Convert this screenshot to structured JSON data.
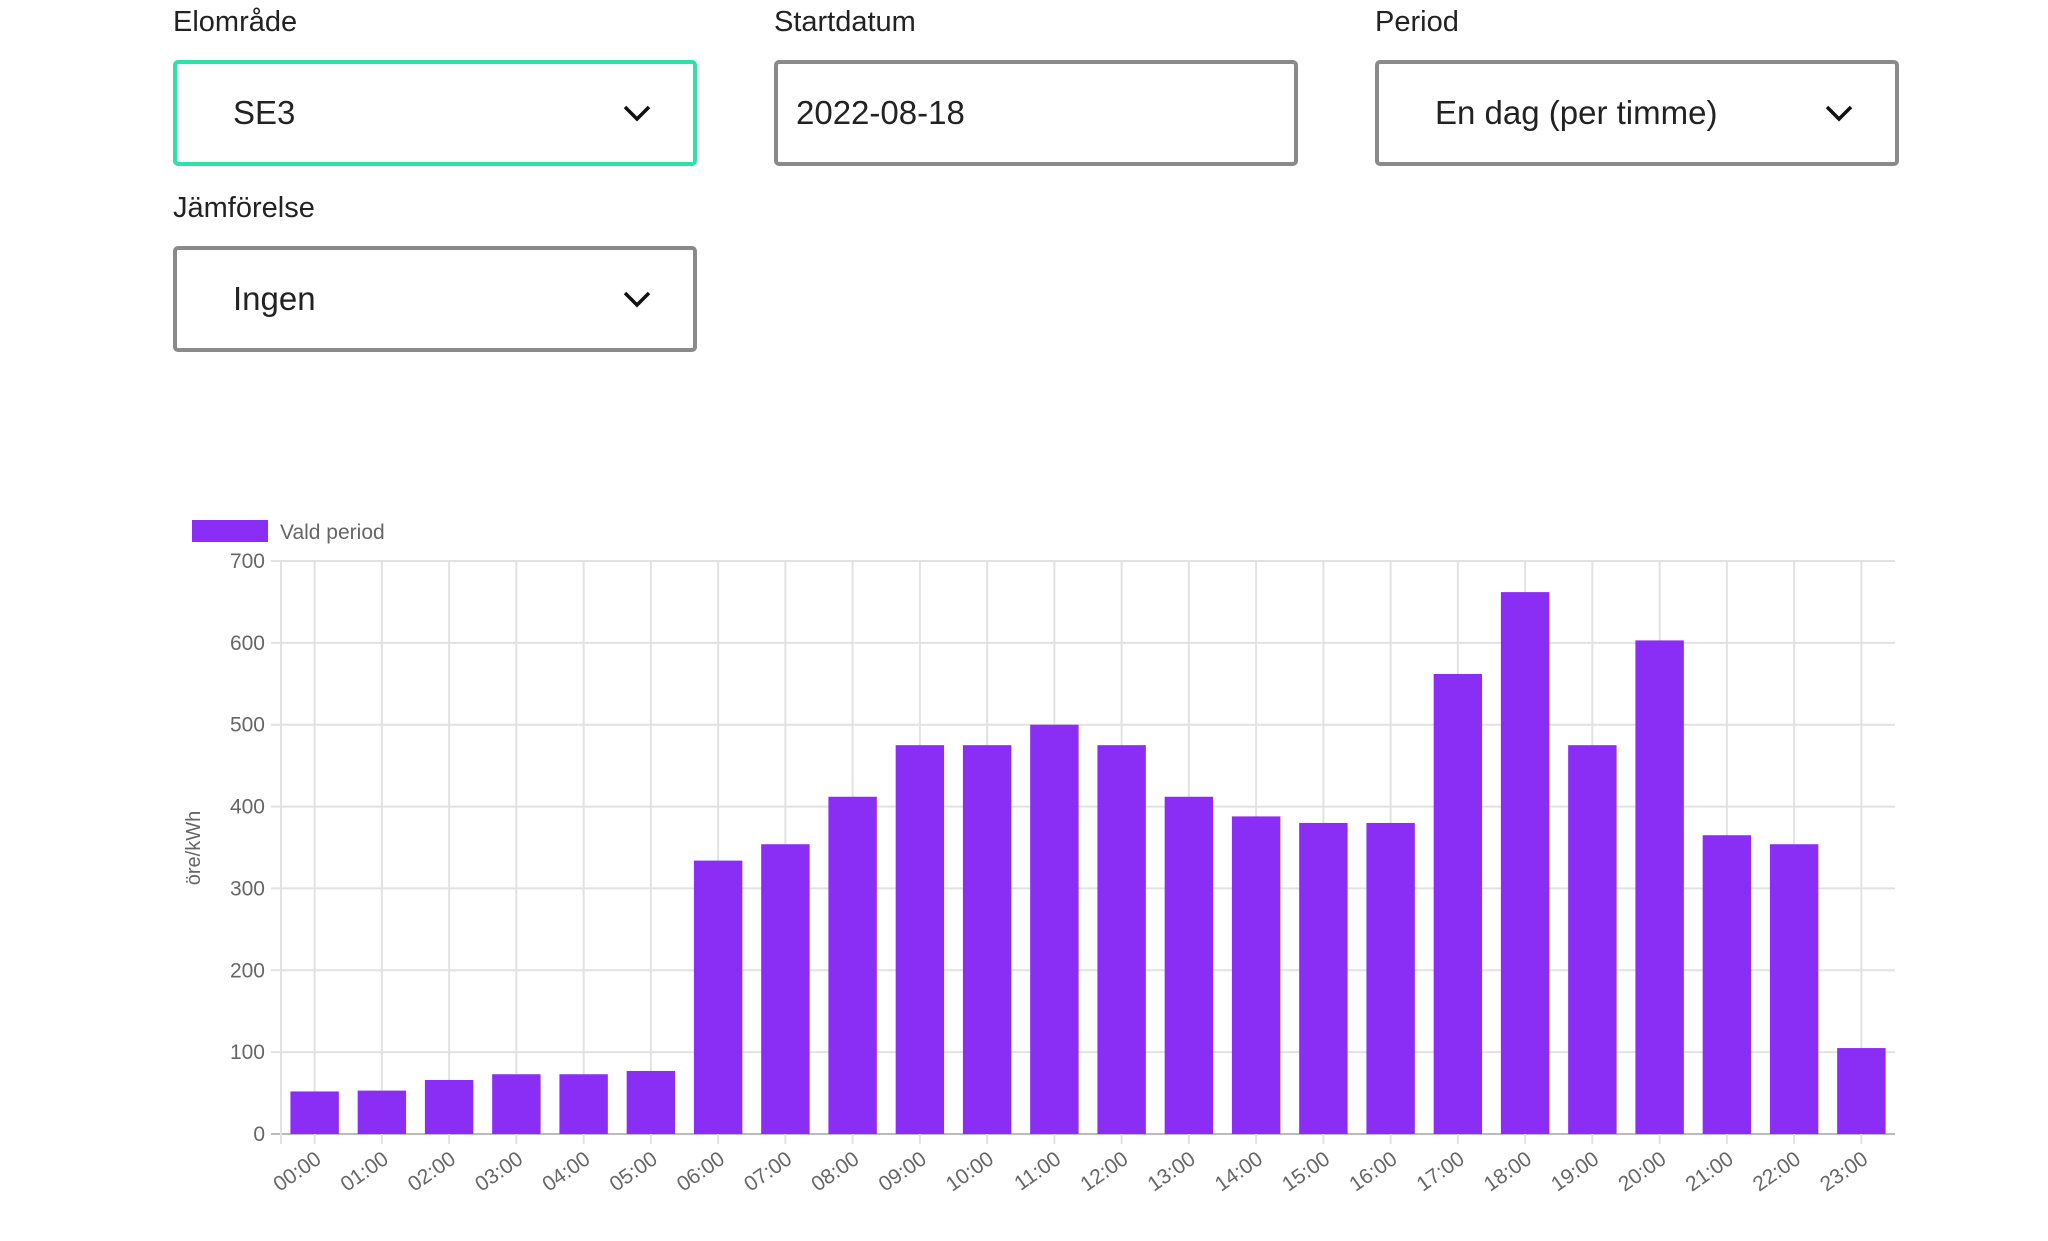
{
  "filters": {
    "elomrade": {
      "label": "Elområde",
      "value": "SE3"
    },
    "startdatum": {
      "label": "Startdatum",
      "value": "2022-08-18"
    },
    "period": {
      "label": "Period",
      "value": "En dag (per timme)"
    },
    "jamforelse": {
      "label": "Jämförelse",
      "value": "Ingen"
    }
  },
  "colors": {
    "accent_focus": "#2fe0a8",
    "bar": "#8a2ef5"
  },
  "chart_data": {
    "type": "bar",
    "categories": [
      "00:00",
      "01:00",
      "02:00",
      "03:00",
      "04:00",
      "05:00",
      "06:00",
      "07:00",
      "08:00",
      "09:00",
      "10:00",
      "11:00",
      "12:00",
      "13:00",
      "14:00",
      "15:00",
      "16:00",
      "17:00",
      "18:00",
      "19:00",
      "20:00",
      "21:00",
      "22:00",
      "23:00"
    ],
    "series": [
      {
        "name": "Vald period",
        "values": [
          52,
          53,
          66,
          73,
          73,
          77,
          334,
          354,
          412,
          475,
          475,
          500,
          475,
          412,
          388,
          380,
          380,
          562,
          662,
          475,
          603,
          365,
          354,
          105
        ]
      }
    ],
    "ylabel": "öre/kWh",
    "xlabel": "",
    "ylim": [
      0,
      700
    ],
    "yticks": [
      "0",
      "100",
      "200",
      "300",
      "400",
      "500",
      "600",
      "700"
    ],
    "grid": true,
    "legend": "top-left"
  }
}
